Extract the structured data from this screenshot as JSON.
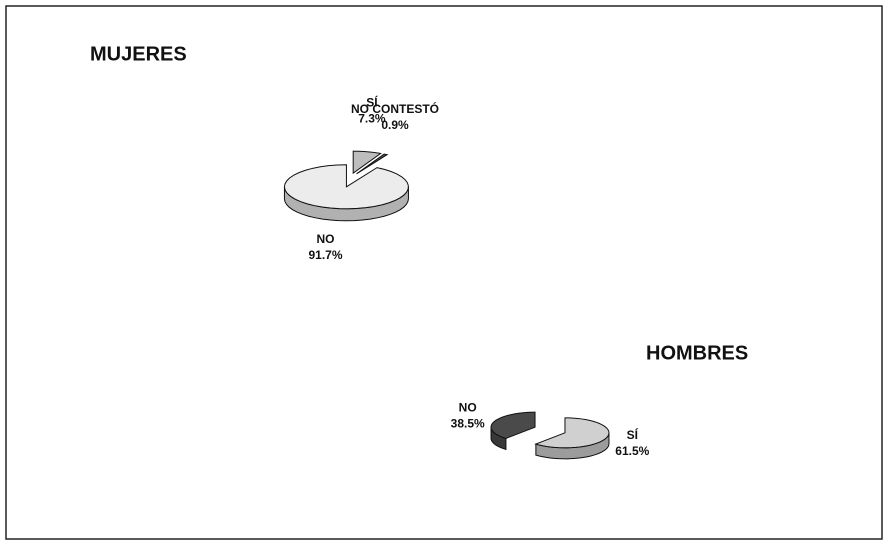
{
  "chart_data": [
    {
      "type": "pie",
      "title": "MUJERES",
      "categories": [
        "SÍ",
        "NO CONTESTÓ",
        "NO"
      ],
      "values": [
        7.3,
        0.9,
        91.7
      ],
      "value_labels": [
        "7.3%",
        "0.9%",
        "91.7%"
      ],
      "colors": [
        "#bdbdbd",
        "#555555",
        "#ececec"
      ]
    },
    {
      "type": "pie",
      "title": "HOMBRES",
      "categories": [
        "SÍ",
        "NO"
      ],
      "values": [
        61.5,
        38.5
      ],
      "value_labels": [
        "61.5%",
        "38.5%"
      ],
      "colors": [
        "#d0d0d0",
        "#4a4a4a"
      ]
    }
  ]
}
